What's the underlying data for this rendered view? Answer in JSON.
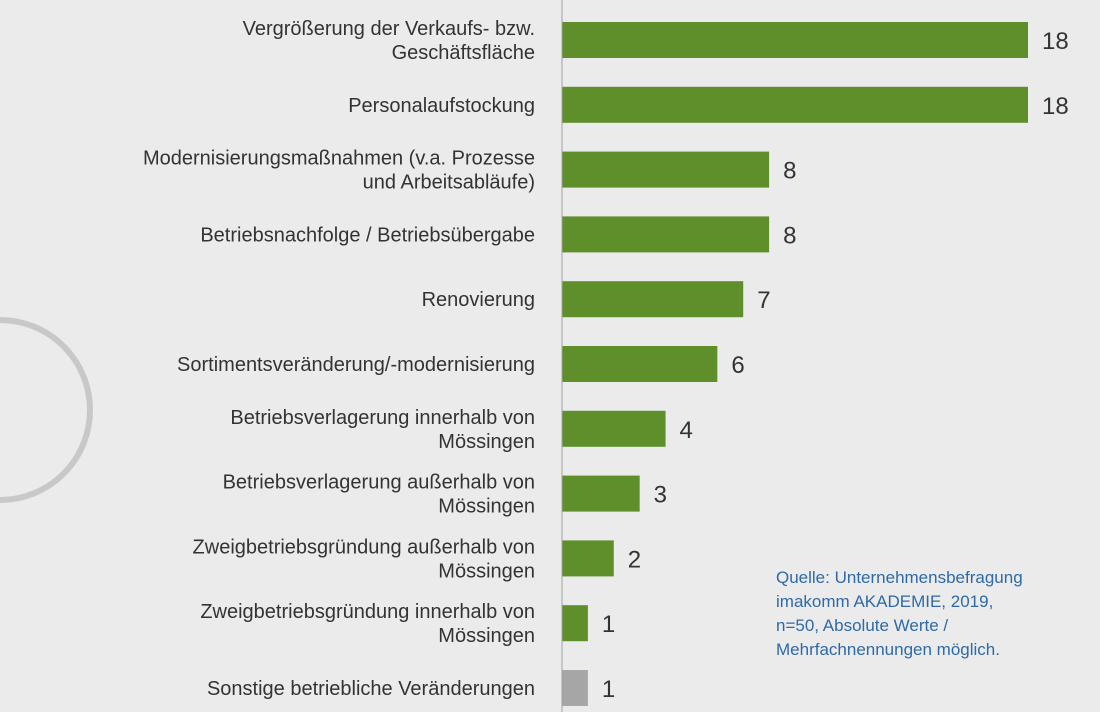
{
  "chart_data": {
    "type": "hbar",
    "categories": [
      [
        "Vergrößerung der Verkaufs- bzw.",
        "Geschäftsfläche"
      ],
      [
        "Personalaufstockung"
      ],
      [
        "Modernisierungsmaßnahmen (v.a. Prozesse",
        "und Arbeitsabläufe)"
      ],
      [
        "Betriebsnachfolge / Betriebsübergabe"
      ],
      [
        "Renovierung"
      ],
      [
        "Sortimentsveränderung/-modernisierung"
      ],
      [
        "Betriebsverlagerung innerhalb von",
        "Mössingen"
      ],
      [
        "Betriebsverlagerung außerhalb von",
        "Mössingen"
      ],
      [
        "Zweigbetriebsgründung außerhalb von",
        "Mössingen"
      ],
      [
        "Zweigbetriebsgründung innerhalb von",
        "Mössingen"
      ],
      [
        "Sonstige betriebliche Veränderungen"
      ]
    ],
    "values": [
      18,
      18,
      8,
      8,
      7,
      6,
      4,
      3,
      2,
      1,
      1
    ],
    "colors": [
      "#5e8f2b",
      "#5e8f2b",
      "#5e8f2b",
      "#5e8f2b",
      "#5e8f2b",
      "#5e8f2b",
      "#5e8f2b",
      "#5e8f2b",
      "#5e8f2b",
      "#5e8f2b",
      "#a6a6a6"
    ],
    "xlim": [
      0,
      18
    ],
    "annotation": [
      "Quelle: Unternehmensbefragung",
      "imakomm AKADEMIE, 2019,",
      "n=50, Absolute Werte  /",
      "Mehrfachnennungen möglich."
    ]
  }
}
